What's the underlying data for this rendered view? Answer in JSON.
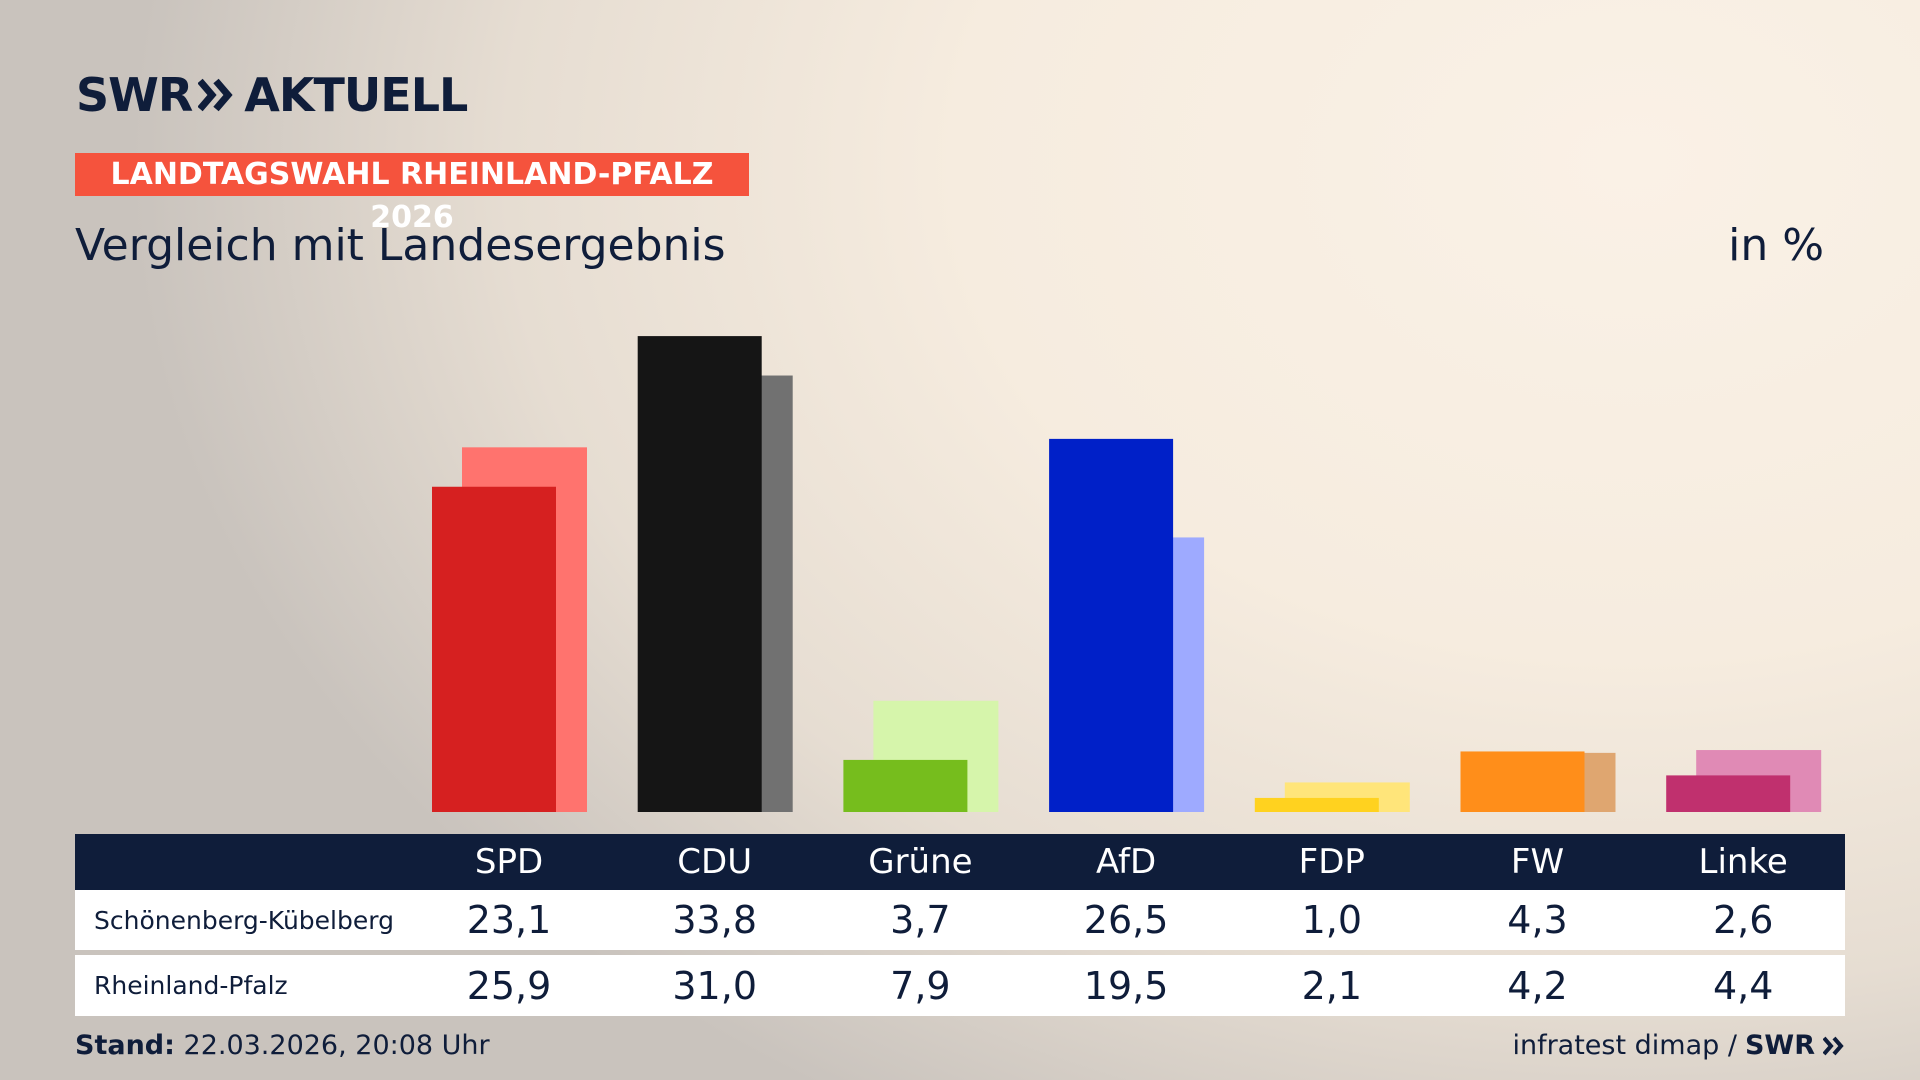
{
  "brand": {
    "name": "SWR",
    "product": "AKTUELL"
  },
  "banner": "LANDTAGSWAHL RHEINLAND-PFALZ 2026",
  "chart_data": {
    "type": "bar",
    "title": "Vergleich mit Landesergebnis",
    "unit": "in %",
    "categories": [
      "SPD",
      "CDU",
      "Grüne",
      "AfD",
      "FDP",
      "FW",
      "Linke"
    ],
    "series": [
      {
        "name": "Schönenberg-Kübelberg",
        "colors": [
          "#d62020",
          "#151515",
          "#76bd1d",
          "#0020c8",
          "#ffd21f",
          "#ff8e1a",
          "#c0306e"
        ],
        "values": [
          23.1,
          33.8,
          3.7,
          26.5,
          1.0,
          4.3,
          2.6
        ],
        "value_labels": [
          "23,1",
          "33,8",
          "3,7",
          "26,5",
          "1,0",
          "4,3",
          "2,6"
        ]
      },
      {
        "name": "Rheinland-Pfalz",
        "colors": [
          "#ff736e",
          "#717171",
          "#d6f5ab",
          "#9eaaff",
          "#ffe57a",
          "#dfa670",
          "#e08ab5"
        ],
        "values": [
          25.9,
          31.0,
          7.9,
          19.5,
          2.1,
          4.2,
          4.4
        ],
        "value_labels": [
          "25,9",
          "31,0",
          "7,9",
          "19,5",
          "2,1",
          "4,2",
          "4,4"
        ]
      }
    ]
  },
  "footer": {
    "label": "Stand:",
    "timestamp": "22.03.2026, 20:08 Uhr",
    "source": "infratest dimap /",
    "source_brand": "SWR"
  }
}
